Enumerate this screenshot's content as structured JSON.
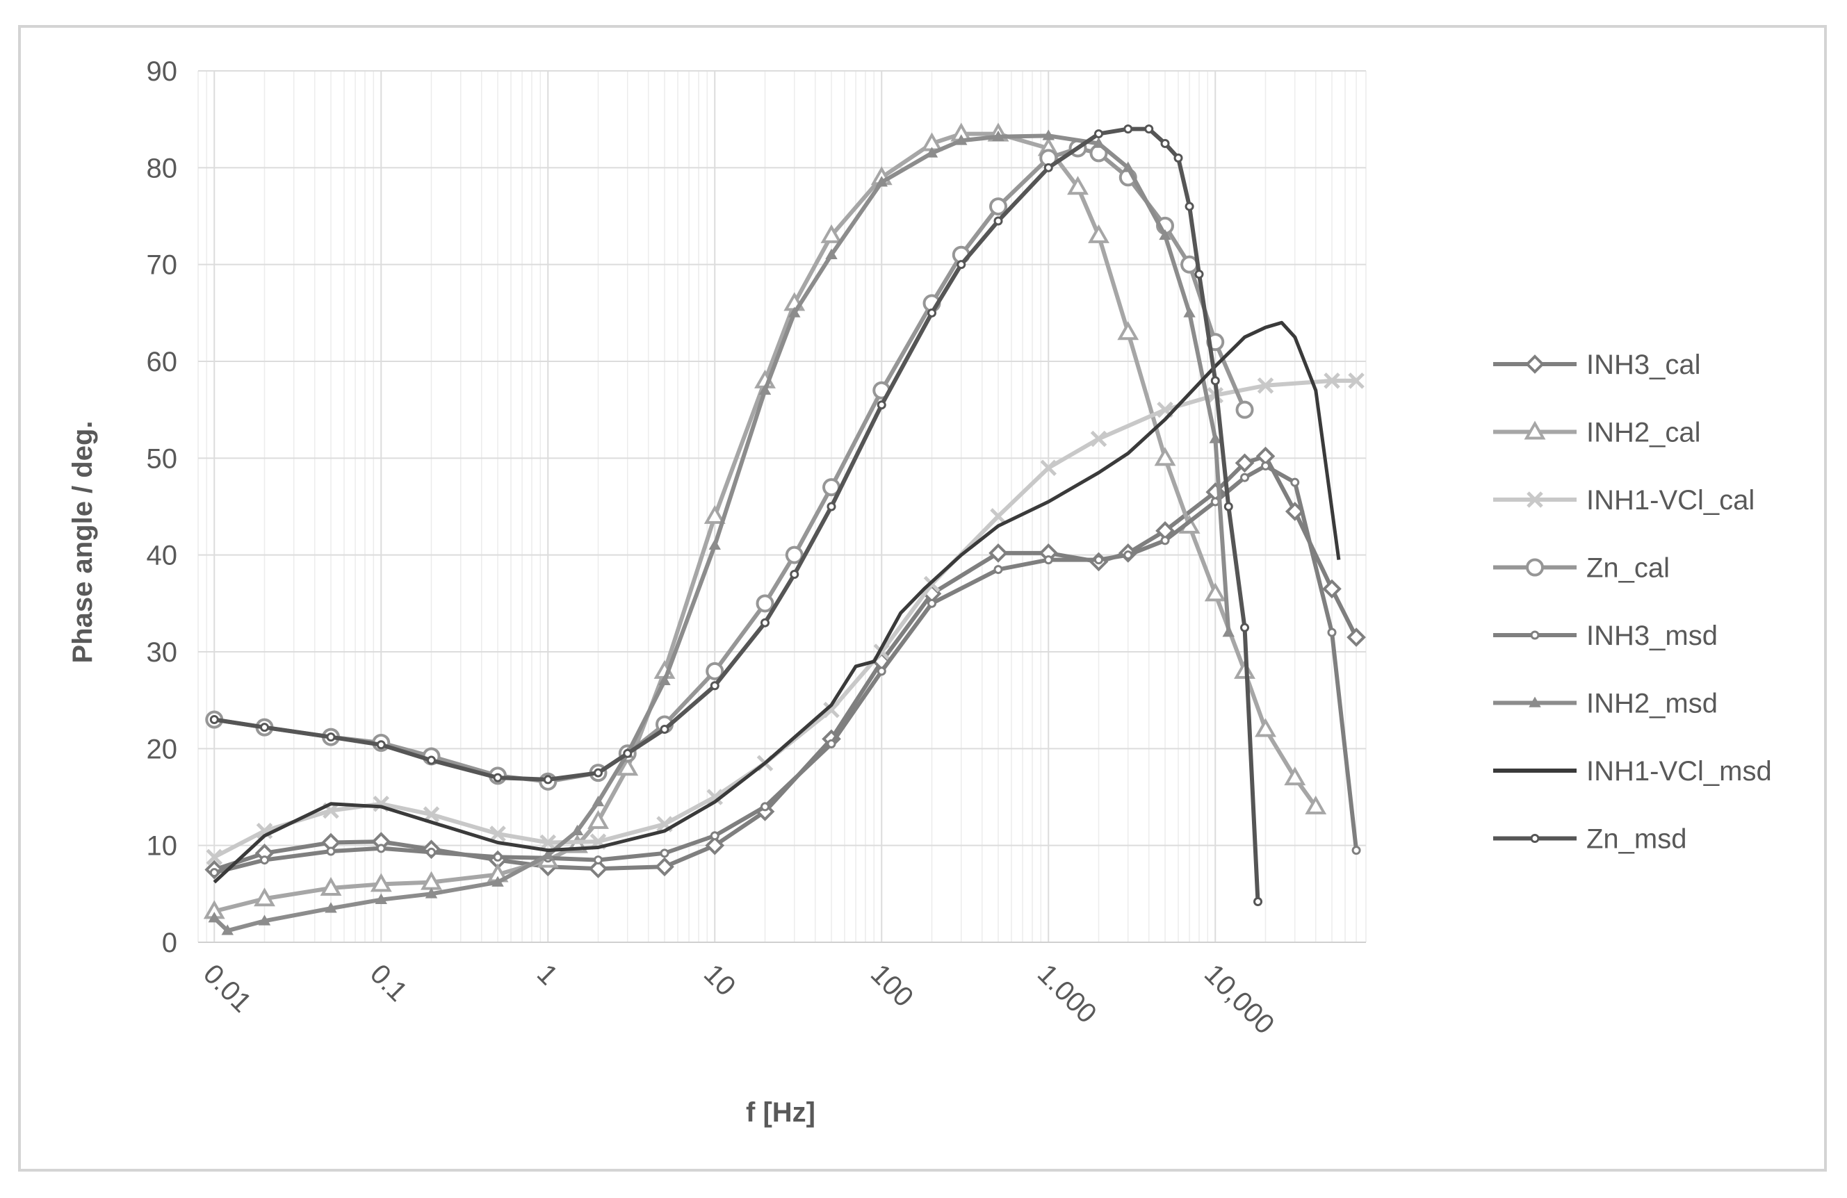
{
  "chart_data": {
    "type": "line",
    "title": "",
    "xlabel": "f [Hz]",
    "ylabel": "Phase angle / deg.",
    "x_scale": "log",
    "xlim": [
      0.008,
      80000
    ],
    "ylim": [
      0,
      90
    ],
    "y_ticks": [
      0,
      10,
      20,
      30,
      40,
      50,
      60,
      70,
      80,
      90
    ],
    "y_tick_labels": [
      "0",
      "10",
      "20",
      "30",
      "40",
      "50",
      "60",
      "70",
      "80",
      "90"
    ],
    "x_ticks": [
      0.01,
      0.1,
      1,
      10,
      100,
      1000,
      10000
    ],
    "x_tick_labels": [
      "0.01",
      "0.1",
      "1",
      "10",
      "100",
      "1.000",
      "10,000"
    ],
    "grid": true,
    "legend_position": "right",
    "series": [
      {
        "name": "INH3_cal",
        "color": "#7f7f7f",
        "marker": "diamond",
        "x": [
          0.01,
          0.02,
          0.05,
          0.1,
          0.2,
          0.5,
          1,
          2,
          5,
          10,
          20,
          50,
          100,
          200,
          500,
          1000,
          2000,
          3000,
          5000,
          10000,
          15000,
          20000,
          30000,
          50000,
          70000
        ],
        "y": [
          7.5,
          9.2,
          10.3,
          10.4,
          9.6,
          8.5,
          7.8,
          7.6,
          7.8,
          10,
          13.5,
          21,
          29,
          36,
          40.2,
          40.2,
          39.3,
          40.2,
          42.5,
          46.5,
          49.5,
          50.2,
          44.5,
          36.5,
          31.5
        ]
      },
      {
        "name": "INH2_cal",
        "color": "#a6a6a6",
        "marker": "triangle",
        "x": [
          0.01,
          0.02,
          0.05,
          0.1,
          0.2,
          0.5,
          1,
          1.5,
          2,
          3,
          5,
          10,
          20,
          30,
          50,
          100,
          200,
          300,
          500,
          1000,
          1500,
          2000,
          3000,
          5000,
          7000,
          10000,
          15000,
          20000,
          30000,
          40000
        ],
        "y": [
          3.2,
          4.5,
          5.6,
          6,
          6.2,
          7,
          8.5,
          10,
          12.5,
          18,
          28,
          44,
          58,
          66,
          73,
          79,
          82.5,
          83.5,
          83.5,
          82,
          78,
          73,
          63,
          50,
          43,
          36,
          28,
          22,
          17,
          14
        ]
      },
      {
        "name": "INH1-VCl_cal",
        "color": "#c8c8c8",
        "marker": "x",
        "x": [
          0.01,
          0.02,
          0.05,
          0.1,
          0.2,
          0.5,
          1,
          2,
          5,
          10,
          20,
          50,
          100,
          200,
          500,
          1000,
          2000,
          5000,
          10000,
          20000,
          50000,
          70000
        ],
        "y": [
          8.8,
          11.5,
          13.6,
          14.3,
          13.2,
          11.2,
          10.3,
          10.4,
          12.2,
          15,
          18.5,
          24,
          30,
          37,
          44,
          49,
          52,
          55,
          56.5,
          57.5,
          58,
          58
        ]
      },
      {
        "name": "Zn_cal",
        "color": "#969696",
        "marker": "circle",
        "x": [
          0.01,
          0.02,
          0.05,
          0.1,
          0.2,
          0.5,
          1,
          2,
          3,
          5,
          10,
          20,
          30,
          50,
          100,
          200,
          300,
          500,
          1000,
          1500,
          2000,
          3000,
          5000,
          7000,
          10000,
          15000
        ],
        "y": [
          23,
          22.2,
          21.2,
          20.6,
          19.2,
          17.2,
          16.6,
          17.5,
          19.5,
          22.5,
          28,
          35,
          40,
          47,
          57,
          66,
          71,
          76,
          81,
          82,
          81.5,
          79,
          74,
          70,
          62,
          55
        ]
      },
      {
        "name": "INH3_msd",
        "color": "#7f7f7f",
        "marker": "dot",
        "x": [
          0.01,
          0.02,
          0.05,
          0.1,
          0.2,
          0.5,
          1,
          2,
          5,
          10,
          20,
          50,
          100,
          200,
          500,
          1000,
          2000,
          3000,
          5000,
          10000,
          15000,
          20000,
          30000,
          50000,
          70000
        ],
        "y": [
          7.2,
          8.5,
          9.4,
          9.7,
          9.3,
          8.8,
          8.7,
          8.5,
          9.2,
          11,
          14,
          20.5,
          28,
          35,
          38.5,
          39.5,
          39.5,
          40,
          41.5,
          45.5,
          48,
          49.2,
          47.5,
          32,
          9.5
        ]
      },
      {
        "name": "INH2_msd",
        "color": "#8c8c8c",
        "marker": "smalltriangle",
        "x": [
          0.01,
          0.012,
          0.02,
          0.05,
          0.1,
          0.2,
          0.5,
          1,
          1.5,
          2,
          3,
          5,
          10,
          20,
          30,
          50,
          100,
          200,
          300,
          500,
          1000,
          2000,
          3000,
          5000,
          7000,
          10000,
          12000
        ],
        "y": [
          2.5,
          1.2,
          2.2,
          3.5,
          4.4,
          5,
          6.2,
          9,
          11.5,
          14.5,
          19.5,
          27,
          41,
          57,
          65,
          71,
          78.5,
          81.5,
          82.8,
          83.2,
          83.3,
          82.5,
          80,
          73,
          65,
          52,
          32
        ]
      },
      {
        "name": "INH1-VCl_msd",
        "color": "#3a3a3a",
        "marker": "none",
        "x": [
          0.01,
          0.02,
          0.05,
          0.1,
          0.2,
          0.5,
          1,
          2,
          5,
          10,
          20,
          50,
          70,
          90,
          130,
          180,
          300,
          500,
          1000,
          2000,
          3000,
          5000,
          10000,
          15000,
          20000,
          25000,
          30000,
          40000,
          55000
        ],
        "y": [
          6.2,
          11,
          14.3,
          14,
          12.4,
          10.3,
          9.5,
          9.8,
          11.5,
          14.5,
          18.5,
          24.5,
          28.5,
          29,
          34,
          36.5,
          40,
          43,
          45.5,
          48.5,
          50.5,
          54,
          59.5,
          62.5,
          63.5,
          64,
          62.5,
          57,
          39.5
        ]
      },
      {
        "name": "Zn_msd",
        "color": "#555555",
        "marker": "dot",
        "x": [
          0.01,
          0.02,
          0.05,
          0.1,
          0.2,
          0.5,
          1,
          2,
          3,
          5,
          10,
          20,
          30,
          50,
          100,
          200,
          300,
          500,
          1000,
          2000,
          3000,
          4000,
          5000,
          6000,
          7000,
          8000,
          10000,
          12000,
          15000,
          18000
        ],
        "y": [
          23,
          22.2,
          21.2,
          20.4,
          18.8,
          17,
          16.8,
          17.5,
          19.5,
          22,
          26.5,
          33,
          38,
          45,
          55.5,
          65,
          70,
          74.5,
          80,
          83.5,
          84,
          84,
          82.5,
          81,
          76,
          69,
          58,
          45,
          32.5,
          4.2
        ]
      }
    ]
  }
}
